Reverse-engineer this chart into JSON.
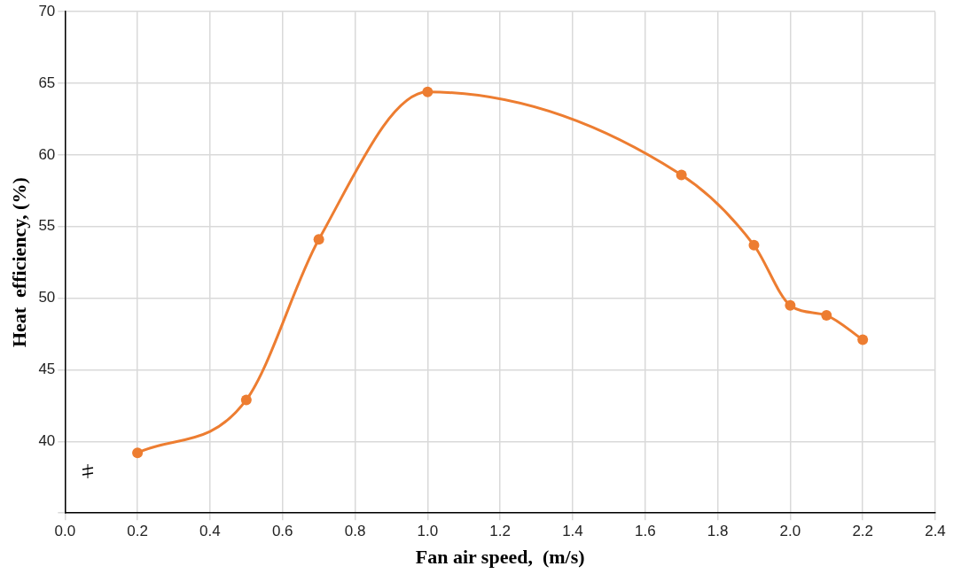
{
  "chart_data": {
    "type": "line",
    "xlabel": "Fan air speed,  (m/s)",
    "ylabel": "Heat  efficiency, (%)",
    "x": [
      0.2,
      0.5,
      0.7,
      1.0,
      1.7,
      1.9,
      2.0,
      2.1,
      2.2
    ],
    "series": [
      {
        "color": "#ed7d31",
        "values": [
          39.2,
          42.9,
          54.1,
          64.4,
          58.6,
          53.7,
          49.5,
          48.8,
          47.1
        ]
      }
    ],
    "xlim": [
      0,
      2.4
    ],
    "xticks": [
      {
        "value": 0,
        "label": "0.0"
      },
      0.2,
      0.4,
      0.6,
      0.8,
      {
        "value": 1,
        "label": "1.0"
      },
      1.2,
      1.4,
      1.6,
      1.8,
      {
        "value": 2,
        "label": "2.0"
      },
      2.2,
      2.4
    ],
    "ylim": [
      35,
      70
    ],
    "yticks": [
      {
        "value": 35,
        "label": null
      },
      40,
      45,
      50,
      55,
      60,
      65,
      70
    ],
    "grid": true,
    "legend": false,
    "marker": "circle",
    "line_style": "solid"
  }
}
